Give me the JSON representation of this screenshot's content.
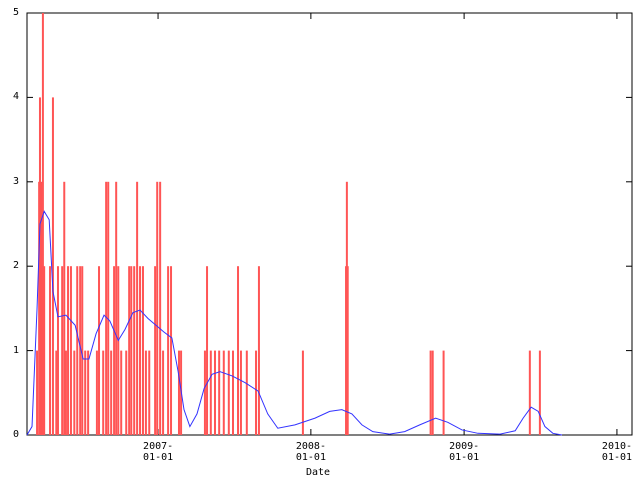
{
  "chart_data": {
    "type": "impulse-line",
    "x_label": "Date",
    "xlim": [
      "2006-02-22",
      "2010-02-06"
    ],
    "xticks": [
      {
        "value": "2007-01-01",
        "label": "2007-\n01-01"
      },
      {
        "value": "2008-01-01",
        "label": "2008-\n01-01"
      },
      {
        "value": "2009-01-01",
        "label": "2009-\n01-01"
      },
      {
        "value": "2010-01-01",
        "label": "2010-\n01-01"
      }
    ],
    "ylim": [
      0,
      5
    ],
    "yticks": [
      0,
      1,
      2,
      3,
      4,
      5
    ],
    "grid": false,
    "impulses": {
      "color": "#ff5555",
      "x": [
        "2006-03-18",
        "2006-03-23",
        "2006-03-25",
        "2006-03-28",
        "2006-04-01",
        "2006-04-04",
        "2006-04-18",
        "2006-04-25",
        "2006-05-03",
        "2006-05-07",
        "2006-05-17",
        "2006-05-22",
        "2006-05-26",
        "2006-05-31",
        "2006-06-07",
        "2006-06-15",
        "2006-06-22",
        "2006-06-29",
        "2006-07-04",
        "2006-07-11",
        "2006-07-18",
        "2006-08-08",
        "2006-08-13",
        "2006-08-23",
        "2006-08-30",
        "2006-09-04",
        "2006-09-11",
        "2006-09-18",
        "2006-09-23",
        "2006-09-28",
        "2006-10-05",
        "2006-10-17",
        "2006-10-24",
        "2006-10-29",
        "2006-11-05",
        "2006-11-12",
        "2006-11-19",
        "2006-11-26",
        "2006-12-03",
        "2006-12-11",
        "2006-12-25",
        "2006-12-30",
        "2007-01-06",
        "2007-01-13",
        "2007-01-25",
        "2007-02-01",
        "2007-02-20",
        "2007-02-25",
        "2007-04-23",
        "2007-04-28",
        "2007-05-07",
        "2007-05-17",
        "2007-05-27",
        "2007-06-07",
        "2007-06-19",
        "2007-06-29",
        "2007-07-11",
        "2007-07-18",
        "2007-08-01",
        "2007-08-23",
        "2007-08-30",
        "2007-12-13",
        "2008-03-25",
        "2008-03-27",
        "2008-03-29",
        "2008-10-13",
        "2008-10-18",
        "2008-11-13",
        "2009-06-07",
        "2009-07-01"
      ],
      "values": [
        1,
        3,
        4,
        3,
        5,
        2,
        2,
        4,
        1,
        2,
        2,
        3,
        1,
        2,
        2,
        1,
        2,
        2,
        2,
        1,
        1,
        1,
        2,
        1,
        3,
        3,
        1,
        2,
        3,
        2,
        1,
        1,
        2,
        2,
        2,
        3,
        2,
        2,
        1,
        1,
        2,
        3,
        3,
        1,
        2,
        2,
        1,
        1,
        1,
        2,
        1,
        1,
        1,
        1,
        1,
        1,
        2,
        1,
        1,
        1,
        2,
        1,
        2,
        3,
        2,
        1,
        1,
        1,
        1,
        1
      ]
    },
    "smooth": {
      "color": "#3333ff",
      "x": [
        "2006-02-22",
        "2006-03-06",
        "2006-03-18",
        "2006-03-25",
        "2006-04-04",
        "2006-04-16",
        "2006-04-25",
        "2006-05-07",
        "2006-05-26",
        "2006-06-17",
        "2006-07-06",
        "2006-07-20",
        "2006-08-06",
        "2006-08-25",
        "2006-09-08",
        "2006-09-28",
        "2006-10-14",
        "2006-11-02",
        "2006-11-19",
        "2006-12-08",
        "2006-12-27",
        "2007-01-15",
        "2007-02-03",
        "2007-02-18",
        "2007-03-04",
        "2007-03-18",
        "2007-04-04",
        "2007-04-21",
        "2007-05-10",
        "2007-05-29",
        "2007-06-27",
        "2007-07-28",
        "2007-08-28",
        "2007-09-20",
        "2007-10-14",
        "2007-11-24",
        "2008-01-11",
        "2008-02-15",
        "2008-03-15",
        "2008-04-08",
        "2008-05-02",
        "2008-05-28",
        "2008-07-07",
        "2008-08-12",
        "2008-09-17",
        "2008-10-25",
        "2008-11-23",
        "2008-12-27",
        "2009-02-03",
        "2009-03-28",
        "2009-05-03",
        "2009-05-22",
        "2009-06-10",
        "2009-06-27",
        "2009-07-13",
        "2009-08-01",
        "2009-08-23"
      ],
      "values": [
        0,
        0.1,
        1.5,
        2.5,
        2.65,
        2.55,
        1.7,
        1.4,
        1.42,
        1.3,
        0.9,
        0.9,
        1.2,
        1.42,
        1.35,
        1.12,
        1.25,
        1.45,
        1.48,
        1.38,
        1.3,
        1.22,
        1.15,
        0.75,
        0.3,
        0.1,
        0.25,
        0.55,
        0.72,
        0.75,
        0.7,
        0.62,
        0.52,
        0.25,
        0.08,
        0.12,
        0.2,
        0.28,
        0.3,
        0.25,
        0.12,
        0.04,
        0.01,
        0.04,
        0.12,
        0.2,
        0.15,
        0.06,
        0.02,
        0.01,
        0.05,
        0.2,
        0.33,
        0.28,
        0.1,
        0.02,
        0
      ]
    }
  }
}
